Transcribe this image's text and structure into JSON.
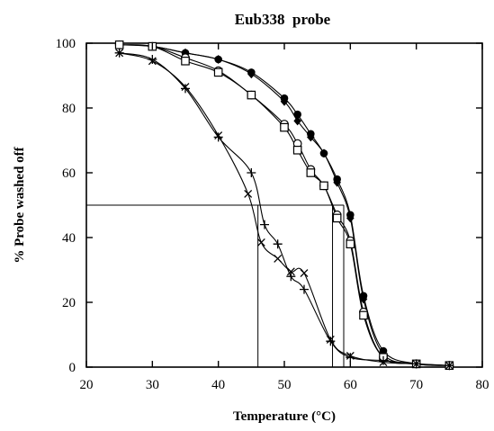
{
  "chart_data": {
    "type": "line",
    "title": "Eub338  probe",
    "xlabel": "Temperature (°C)",
    "ylabel": "% Probe washed off",
    "xlim": [
      20,
      80
    ],
    "ylim": [
      0,
      100
    ],
    "x_ticks": [
      20,
      30,
      40,
      50,
      60,
      70,
      80
    ],
    "y_ticks": [
      0,
      20,
      40,
      60,
      80,
      100
    ],
    "grid": false,
    "legend": "none",
    "series": [
      {
        "marker": "filled-circle",
        "x": [
          25,
          30,
          35,
          40,
          45,
          50,
          52,
          54,
          56,
          58,
          60,
          62,
          65,
          70,
          75
        ],
        "y": [
          99.5,
          99,
          97,
          95,
          91,
          83,
          78,
          72,
          66,
          58,
          47,
          22,
          5,
          1,
          0.5
        ]
      },
      {
        "marker": "filled-diamond",
        "x": [
          25,
          30,
          35,
          40,
          45,
          50,
          52,
          54,
          56,
          58,
          60,
          62,
          65,
          70,
          75
        ],
        "y": [
          99.5,
          99,
          97,
          95,
          90.5,
          82,
          76,
          71,
          66,
          57,
          46,
          21,
          4,
          1,
          0.5
        ]
      },
      {
        "marker": "open-circle",
        "x": [
          25,
          30,
          35,
          40,
          45,
          50,
          52,
          54,
          56,
          58,
          60,
          62,
          65,
          70,
          75
        ],
        "y": [
          99.5,
          99,
          95.5,
          91.5,
          84,
          75,
          69,
          61,
          56,
          47,
          39,
          17,
          3,
          1,
          0.5
        ]
      },
      {
        "marker": "open-square",
        "x": [
          25,
          30,
          35,
          40,
          45,
          50,
          52,
          54,
          56,
          58,
          60,
          62,
          65,
          70,
          75
        ],
        "y": [
          99.5,
          99,
          94.5,
          91,
          84,
          74,
          67,
          60,
          56,
          46,
          38,
          16,
          3,
          1,
          0.5
        ]
      },
      {
        "marker": "plus",
        "x": [
          25,
          30,
          35,
          40,
          45,
          47,
          49,
          51,
          53,
          57,
          60,
          65,
          70,
          75
        ],
        "y": [
          97,
          95,
          86,
          71,
          60,
          44,
          38,
          28,
          24,
          8,
          3,
          2,
          1,
          0.5
        ]
      },
      {
        "marker": "cross",
        "x": [
          25,
          30,
          35,
          40,
          44.5,
          46.5,
          49,
          51,
          53,
          57,
          60,
          65,
          70,
          75
        ],
        "y": [
          97,
          94.5,
          86.5,
          71.5,
          53.5,
          38.5,
          33.5,
          29.5,
          29,
          8.5,
          3.5,
          1.5,
          1,
          0.5
        ]
      }
    ],
    "reference_lines": [
      {
        "kind": "horizontal",
        "y": 50,
        "x_from": 20,
        "x_to": 59
      },
      {
        "kind": "vertical",
        "x": 46,
        "y_from": 0,
        "y_to": 50
      },
      {
        "kind": "vertical",
        "x": 57.3,
        "y_from": 0,
        "y_to": 50
      },
      {
        "kind": "vertical",
        "x": 59,
        "y_from": 0,
        "y_to": 50
      }
    ]
  }
}
